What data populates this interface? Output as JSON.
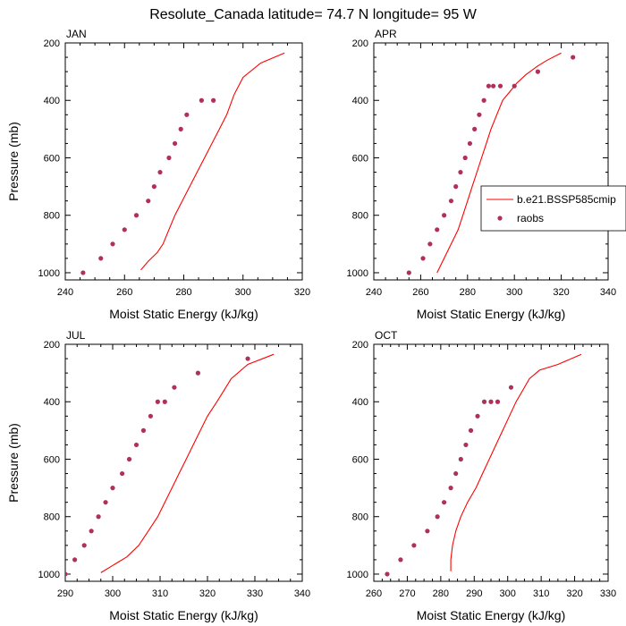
{
  "figure": {
    "title": "Resolute_Canada  latitude= 74.7 N longitude= 95 W"
  },
  "colors": {
    "model_line": "#ff0000",
    "obs_marker": "#b0305a",
    "axis": "#000000"
  },
  "chart_data": [
    {
      "type": "line",
      "panel_label": "JAN",
      "xlabel": "Moist Static Energy (kJ/kg)",
      "ylabel": "Pressure (mb)",
      "xlim": [
        240,
        320
      ],
      "ylim": [
        1025,
        200
      ],
      "xticks": [
        240,
        260,
        280,
        300,
        320
      ],
      "yticks": [
        200,
        400,
        600,
        800,
        1000
      ],
      "y_inverted": true,
      "legend": null,
      "series": [
        {
          "kind": "line",
          "x": [
            265.5,
            268,
            271,
            273,
            275,
            277,
            279.5,
            282,
            284.5,
            287,
            289.5,
            292,
            294.5,
            297,
            300,
            306,
            314
          ],
          "y": [
            990,
            960,
            930,
            900,
            850,
            800,
            750,
            700,
            650,
            600,
            550,
            500,
            450,
            380,
            320,
            270,
            235
          ]
        },
        {
          "kind": "scatter",
          "x": [
            246,
            252,
            256,
            260,
            264,
            268,
            270,
            272,
            275,
            277,
            279,
            281,
            286,
            290
          ],
          "y": [
            1000,
            950,
            900,
            850,
            800,
            750,
            700,
            650,
            600,
            550,
            500,
            450,
            400,
            400
          ]
        }
      ]
    },
    {
      "type": "line",
      "panel_label": "APR",
      "xlabel": "Moist Static Energy (kJ/kg)",
      "ylabel": "",
      "xlim": [
        240,
        340
      ],
      "ylim": [
        1025,
        200
      ],
      "xticks": [
        240,
        260,
        280,
        300,
        320,
        340
      ],
      "yticks": [
        200,
        400,
        600,
        800,
        1000
      ],
      "y_inverted": true,
      "legend": {
        "placement": "right",
        "entries": [
          {
            "label": "b.e21.BSSP585cmip",
            "kind": "line"
          },
          {
            "label": "raobs",
            "kind": "marker"
          }
        ]
      },
      "series": [
        {
          "kind": "line",
          "x": [
            267,
            270,
            273,
            276,
            278,
            280,
            282,
            284,
            286,
            288,
            290,
            292.5,
            295,
            298,
            301,
            305,
            310,
            314,
            320
          ],
          "y": [
            1000,
            950,
            900,
            850,
            800,
            750,
            700,
            650,
            600,
            550,
            500,
            450,
            400,
            370,
            340,
            310,
            280,
            260,
            235
          ]
        },
        {
          "kind": "scatter",
          "x": [
            255,
            261,
            264,
            267,
            270,
            273,
            275,
            277,
            279,
            281,
            283,
            285,
            287,
            289,
            291,
            294,
            300,
            310,
            325
          ],
          "y": [
            1000,
            950,
            900,
            850,
            800,
            750,
            700,
            650,
            600,
            550,
            500,
            450,
            400,
            350,
            350,
            350,
            350,
            300,
            250
          ]
        }
      ]
    },
    {
      "type": "line",
      "panel_label": "JUL",
      "xlabel": "Moist Static Energy (kJ/kg)",
      "ylabel": "Pressure (mb)",
      "xlim": [
        290,
        340
      ],
      "ylim": [
        1025,
        200
      ],
      "xticks": [
        290,
        300,
        310,
        320,
        330,
        340
      ],
      "yticks": [
        200,
        400,
        600,
        800,
        1000
      ],
      "y_inverted": true,
      "legend": null,
      "series": [
        {
          "kind": "line",
          "x": [
            297.5,
            300,
            303,
            305.5,
            307.5,
            309.5,
            311,
            312.5,
            314,
            315.5,
            317,
            318.5,
            320,
            322,
            325,
            328.5,
            334
          ],
          "y": [
            995,
            970,
            940,
            900,
            850,
            800,
            750,
            700,
            650,
            600,
            550,
            500,
            450,
            400,
            320,
            270,
            235
          ]
        },
        {
          "kind": "scatter",
          "x": [
            290,
            292,
            294,
            295.5,
            297,
            298.5,
            300,
            302,
            303.5,
            305,
            306.5,
            308,
            309.5,
            311,
            313,
            318,
            328.5
          ],
          "y": [
            1000,
            950,
            900,
            850,
            800,
            750,
            700,
            650,
            600,
            550,
            500,
            450,
            400,
            400,
            350,
            300,
            250
          ]
        }
      ]
    },
    {
      "type": "line",
      "panel_label": "OCT",
      "xlabel": "Moist Static Energy (kJ/kg)",
      "ylabel": "",
      "xlim": [
        260,
        330
      ],
      "ylim": [
        1025,
        200
      ],
      "xticks": [
        260,
        270,
        280,
        290,
        300,
        310,
        320,
        330
      ],
      "yticks": [
        200,
        400,
        600,
        800,
        1000
      ],
      "y_inverted": true,
      "legend": null,
      "series": [
        {
          "kind": "line",
          "x": [
            283,
            283,
            283.5,
            284.5,
            286,
            288,
            290.5,
            292.5,
            294.5,
            296.5,
            298.5,
            300.5,
            302.5,
            304.5,
            306.5,
            309.5,
            315,
            322
          ],
          "y": [
            990,
            950,
            900,
            850,
            800,
            750,
            700,
            650,
            600,
            550,
            500,
            450,
            400,
            360,
            320,
            290,
            270,
            235
          ]
        },
        {
          "kind": "scatter",
          "x": [
            264,
            268,
            272,
            276,
            279,
            281,
            283,
            284.5,
            286,
            287.5,
            289,
            291,
            293,
            295,
            297,
            301
          ],
          "y": [
            1000,
            950,
            900,
            850,
            800,
            750,
            700,
            650,
            600,
            550,
            500,
            450,
            400,
            400,
            400,
            350
          ]
        }
      ]
    }
  ]
}
